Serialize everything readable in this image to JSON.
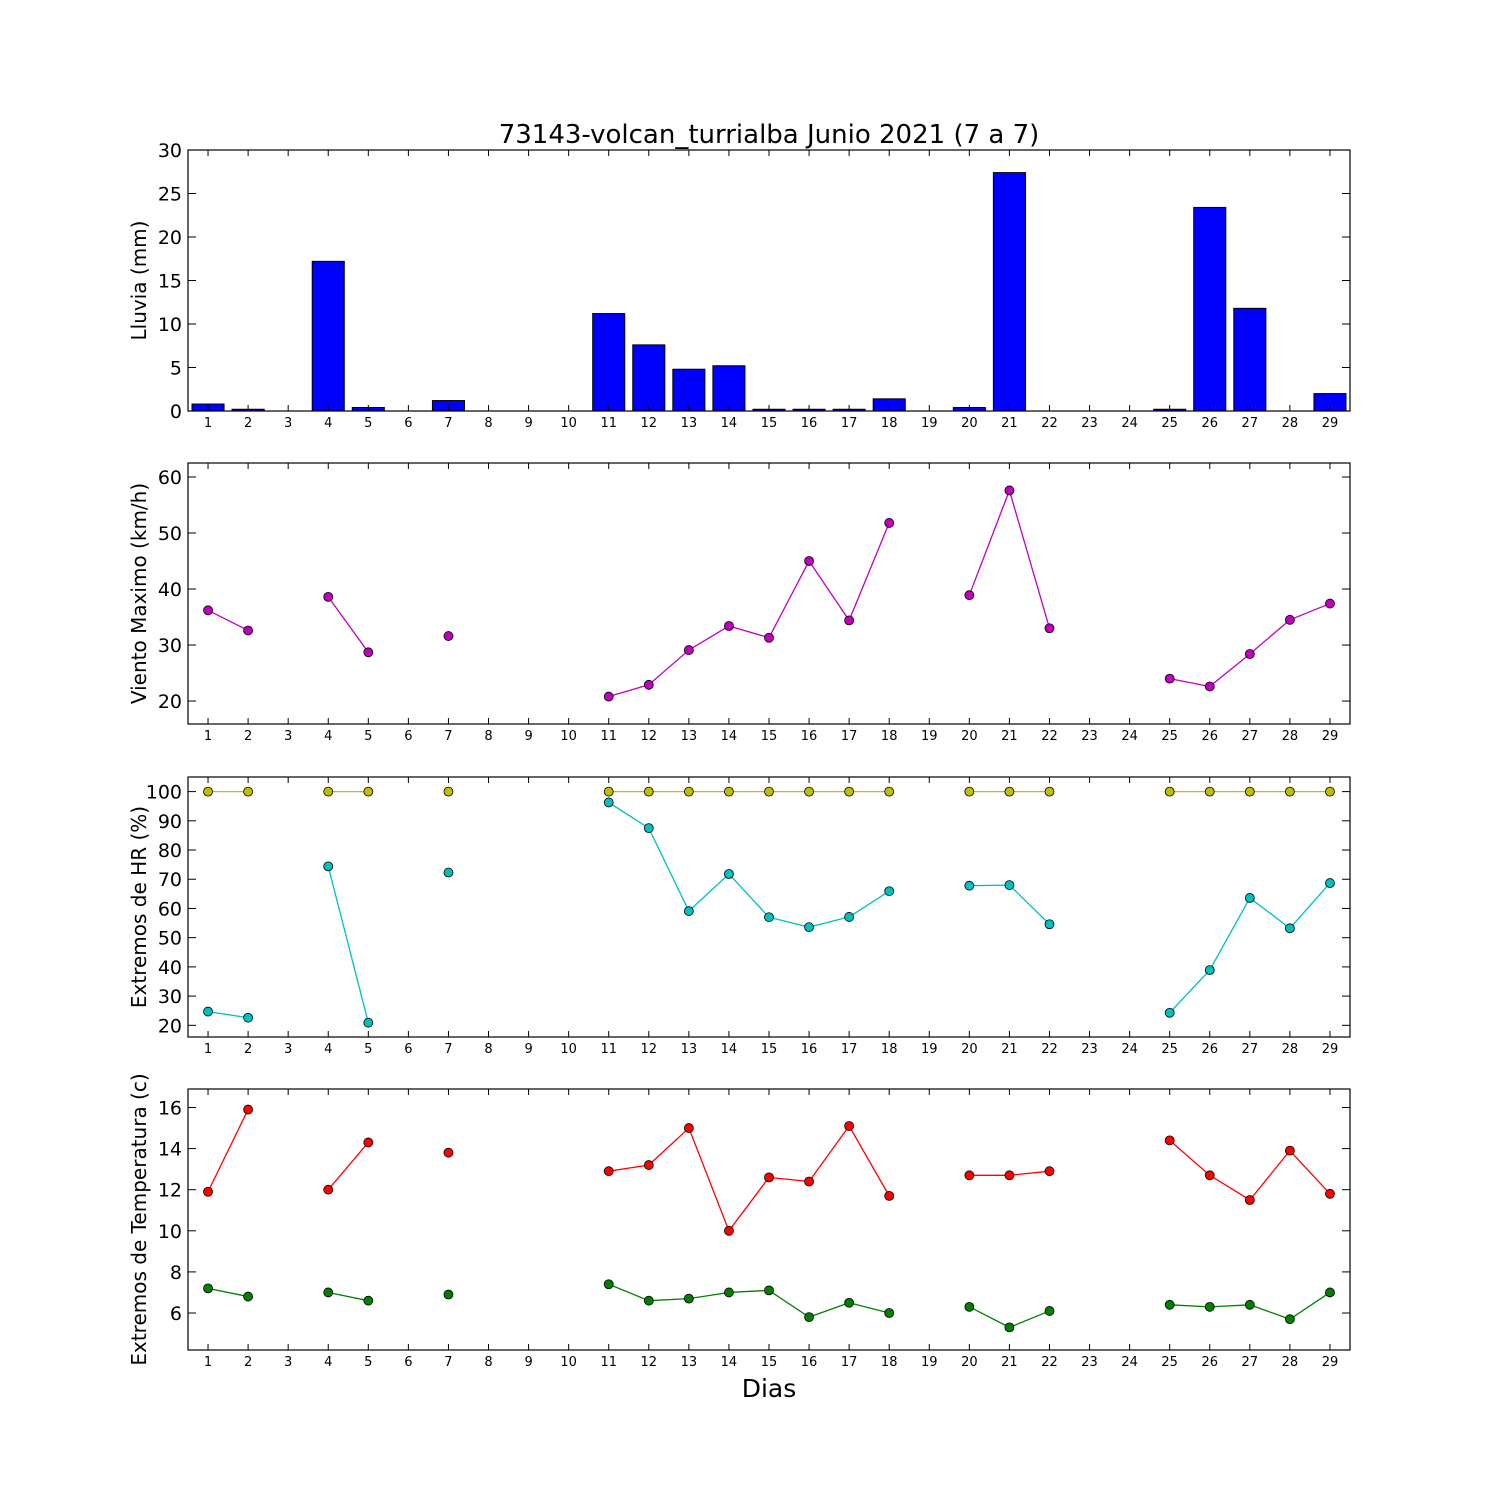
{
  "figure": {
    "title": "73143-volcan_turrialba Junio 2021  (7 a 7)",
    "xlabel": "Dias"
  },
  "chart_data": [
    {
      "type": "bar",
      "ylabel": "Lluvia (mm)",
      "ylim": [
        0,
        30
      ],
      "yticks": [
        0,
        5,
        10,
        15,
        20,
        25,
        30
      ],
      "xlim": [
        0.5,
        29.5
      ],
      "x_ticks": [
        1,
        2,
        3,
        4,
        5,
        6,
        7,
        8,
        9,
        10,
        11,
        12,
        13,
        14,
        15,
        16,
        17,
        18,
        19,
        20,
        21,
        22,
        23,
        24,
        25,
        26,
        27,
        28,
        29
      ],
      "bar_width": 0.8,
      "series": [
        {
          "color": "#0000ff",
          "x": [
            1,
            2,
            3,
            4,
            5,
            6,
            7,
            8,
            9,
            10,
            11,
            12,
            13,
            14,
            15,
            16,
            17,
            18,
            19,
            20,
            21,
            22,
            23,
            24,
            25,
            26,
            27,
            28,
            29
          ],
          "values": [
            0.8,
            0.2,
            0,
            17.2,
            0.4,
            0,
            1.2,
            0,
            0,
            0,
            11.2,
            7.6,
            4.8,
            5.2,
            0.2,
            0.2,
            0.2,
            1.4,
            0,
            0.4,
            27.4,
            0,
            0,
            0,
            0.2,
            23.4,
            11.8,
            0,
            2.0
          ]
        }
      ]
    },
    {
      "type": "line",
      "ylabel": "Viento Maximo (km/h)",
      "ylim": [
        15.9,
        62.5
      ],
      "yticks": [
        20,
        30,
        40,
        50,
        60
      ],
      "xlim": [
        0.5,
        29.5
      ],
      "x_ticks": [
        1,
        2,
        3,
        4,
        5,
        6,
        7,
        8,
        9,
        10,
        11,
        12,
        13,
        14,
        15,
        16,
        17,
        18,
        19,
        20,
        21,
        22,
        23,
        24,
        25,
        26,
        27,
        28,
        29
      ],
      "series": [
        {
          "color": "#bf00bf",
          "x": [
            1,
            2,
            3,
            4,
            5,
            6,
            7,
            8,
            9,
            10,
            11,
            12,
            13,
            14,
            15,
            16,
            17,
            18,
            19,
            20,
            21,
            22,
            23,
            24,
            25,
            26,
            27,
            28,
            29
          ],
          "y": [
            36.2,
            32.6,
            null,
            38.6,
            28.7,
            null,
            31.6,
            null,
            null,
            null,
            20.8,
            22.9,
            29.1,
            33.4,
            31.3,
            45.0,
            34.4,
            51.8,
            null,
            38.9,
            57.6,
            33.0,
            null,
            null,
            24.0,
            22.6,
            28.4,
            34.5,
            37.4
          ]
        }
      ]
    },
    {
      "type": "line",
      "ylabel": "Extremos de HR (%)",
      "ylim": [
        16,
        105
      ],
      "yticks": [
        20,
        30,
        40,
        50,
        60,
        70,
        80,
        90,
        100
      ],
      "xlim": [
        0.5,
        29.5
      ],
      "x_ticks": [
        1,
        2,
        3,
        4,
        5,
        6,
        7,
        8,
        9,
        10,
        11,
        12,
        13,
        14,
        15,
        16,
        17,
        18,
        19,
        20,
        21,
        22,
        23,
        24,
        25,
        26,
        27,
        28,
        29
      ],
      "series": [
        {
          "color": "#bfbf00",
          "x": [
            1,
            2,
            3,
            4,
            5,
            6,
            7,
            8,
            9,
            10,
            11,
            12,
            13,
            14,
            15,
            16,
            17,
            18,
            19,
            20,
            21,
            22,
            23,
            24,
            25,
            26,
            27,
            28,
            29
          ],
          "y": [
            100,
            100,
            null,
            100,
            100,
            null,
            100,
            null,
            null,
            null,
            100,
            100,
            100,
            100,
            100,
            100,
            100,
            100,
            null,
            100,
            100,
            100,
            null,
            null,
            100,
            100,
            100,
            100,
            100
          ]
        },
        {
          "color": "#00bfbf",
          "x": [
            1,
            2,
            3,
            4,
            5,
            6,
            7,
            8,
            9,
            10,
            11,
            12,
            13,
            14,
            15,
            16,
            17,
            18,
            19,
            20,
            21,
            22,
            23,
            24,
            25,
            26,
            27,
            28,
            29
          ],
          "y": [
            24.7,
            22.6,
            null,
            74.4,
            20.9,
            null,
            72.3,
            null,
            null,
            null,
            96.3,
            87.5,
            59.1,
            71.8,
            57.0,
            53.6,
            57.1,
            65.9,
            null,
            67.8,
            68.0,
            54.6,
            null,
            null,
            24.3,
            38.9,
            63.6,
            53.2,
            68.7
          ]
        }
      ]
    },
    {
      "type": "line",
      "ylabel": "Extremos de Temperatura (c)",
      "ylim": [
        4.2,
        16.9
      ],
      "yticks": [
        6,
        8,
        10,
        12,
        14,
        16
      ],
      "xlim": [
        0.5,
        29.5
      ],
      "x_ticks": [
        1,
        2,
        3,
        4,
        5,
        6,
        7,
        8,
        9,
        10,
        11,
        12,
        13,
        14,
        15,
        16,
        17,
        18,
        19,
        20,
        21,
        22,
        23,
        24,
        25,
        26,
        27,
        28,
        29
      ],
      "series": [
        {
          "color": "#ff0000",
          "x": [
            1,
            2,
            3,
            4,
            5,
            6,
            7,
            8,
            9,
            10,
            11,
            12,
            13,
            14,
            15,
            16,
            17,
            18,
            19,
            20,
            21,
            22,
            23,
            24,
            25,
            26,
            27,
            28,
            29
          ],
          "y": [
            11.9,
            15.9,
            null,
            12.0,
            14.3,
            null,
            13.8,
            null,
            null,
            null,
            12.9,
            13.2,
            15.0,
            10.0,
            12.6,
            12.4,
            15.1,
            11.7,
            null,
            12.7,
            12.7,
            12.9,
            null,
            null,
            14.4,
            12.7,
            11.5,
            13.9,
            11.8
          ]
        },
        {
          "color": "#008000",
          "x": [
            1,
            2,
            3,
            4,
            5,
            6,
            7,
            8,
            9,
            10,
            11,
            12,
            13,
            14,
            15,
            16,
            17,
            18,
            19,
            20,
            21,
            22,
            23,
            24,
            25,
            26,
            27,
            28,
            29
          ],
          "y": [
            7.2,
            6.8,
            null,
            7.0,
            6.6,
            null,
            6.9,
            null,
            null,
            null,
            7.4,
            6.6,
            6.7,
            7.0,
            7.1,
            5.8,
            6.5,
            6.0,
            null,
            6.3,
            5.3,
            6.1,
            null,
            null,
            6.4,
            6.3,
            6.4,
            5.7,
            7.0
          ]
        }
      ]
    }
  ]
}
